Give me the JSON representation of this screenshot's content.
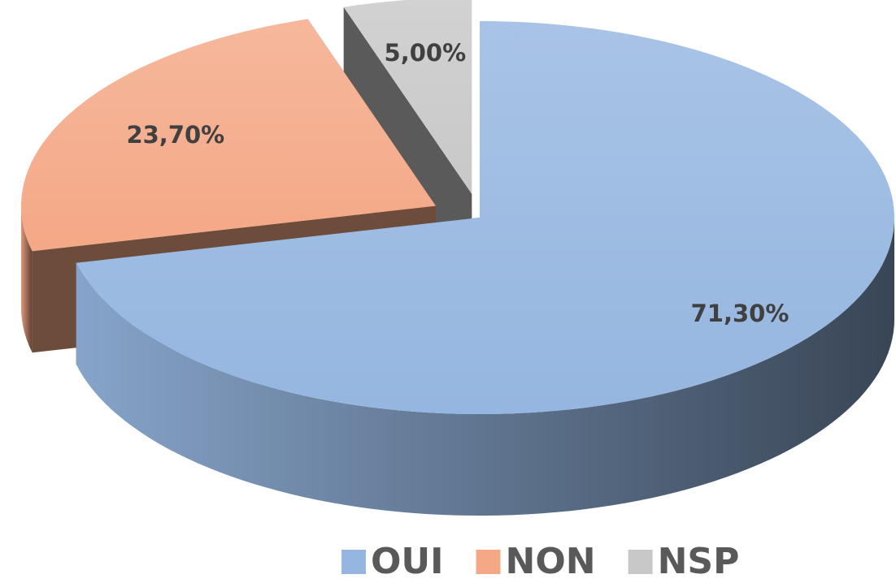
{
  "chart_data": {
    "type": "pie",
    "categories": [
      "OUI",
      "NON",
      "NSP"
    ],
    "values": [
      71.3,
      23.7,
      5.0
    ],
    "value_labels": [
      "71,30%",
      "23,70%",
      "5,00%"
    ],
    "colors": [
      "#95b6e0",
      "#f4a886",
      "#c8c8c8"
    ],
    "legend": "bottom"
  }
}
